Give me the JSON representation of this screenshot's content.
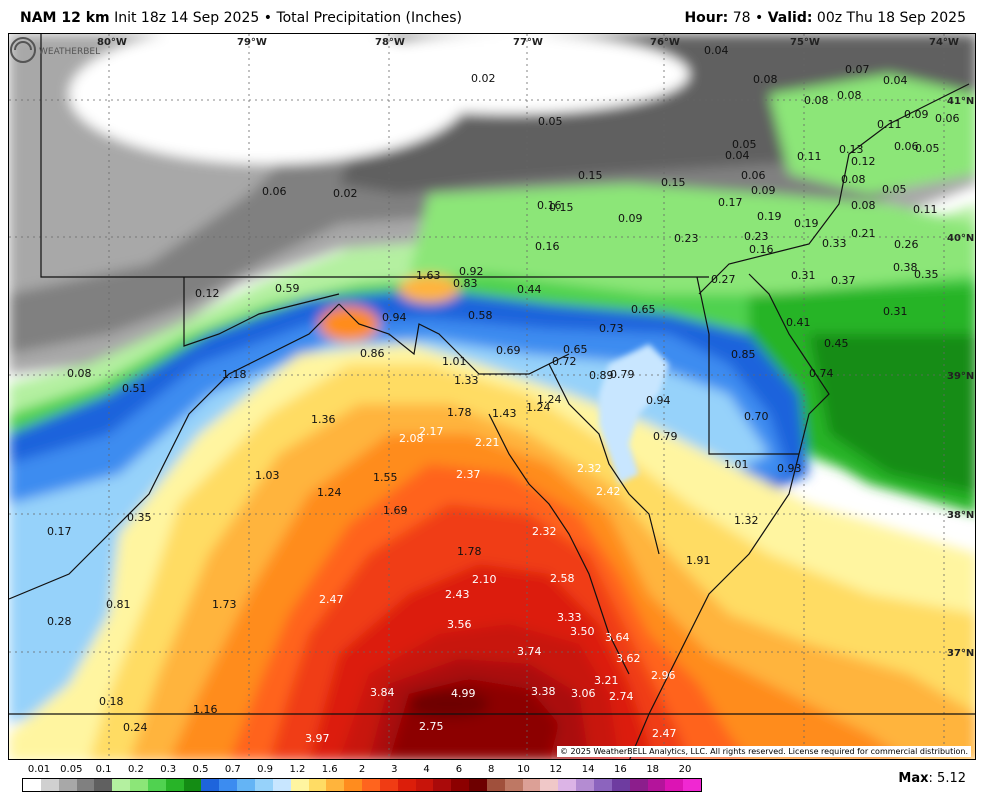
{
  "header": {
    "model": "NAM 12 km",
    "init": "Init 18z 14 Sep 2025",
    "bullet": "•",
    "product": "Total Precipitation (Inches)",
    "hour_label": "Hour:",
    "hour_value": "78",
    "valid_label": "Valid:",
    "valid_value": "00z Thu 18 Sep 2025"
  },
  "map": {
    "longitude_labels": [
      "80°W",
      "79°W",
      "78°W",
      "77°W",
      "76°W",
      "75°W",
      "74°W"
    ],
    "latitude_labels": [
      "41°N",
      "40°N",
      "39°N",
      "38°N",
      "37°N"
    ],
    "precip_values": [
      {
        "t": "0.04",
        "v": 0.04
      },
      {
        "t": "0.02",
        "v": 0.02
      },
      {
        "t": "0.08",
        "v": 0.08
      },
      {
        "t": "0.07",
        "v": 0.07
      },
      {
        "t": "0.04",
        "v": 0.04
      },
      {
        "t": "0.08",
        "v": 0.08
      },
      {
        "t": "0.08",
        "v": 0.08
      },
      {
        "t": "0.09",
        "v": 0.09
      },
      {
        "t": "0.06",
        "v": 0.06
      },
      {
        "t": "0.11",
        "v": 0.11
      },
      {
        "t": "0.05",
        "v": 0.05
      },
      {
        "t": "0.05",
        "v": 0.05
      },
      {
        "t": "0.13",
        "v": 0.13
      },
      {
        "t": "0.06",
        "v": 0.06
      },
      {
        "t": "0.05",
        "v": 0.05
      },
      {
        "t": "0.04",
        "v": 0.04
      },
      {
        "t": "0.11",
        "v": 0.11
      },
      {
        "t": "0.12",
        "v": 0.12
      },
      {
        "t": "0.06",
        "v": 0.06
      },
      {
        "t": "0.08",
        "v": 0.08
      },
      {
        "t": "0.06",
        "v": 0.06
      },
      {
        "t": "0.02",
        "v": 0.02
      },
      {
        "t": "0.15",
        "v": 0.15
      },
      {
        "t": "0.15",
        "v": 0.15
      },
      {
        "t": "0.09",
        "v": 0.09
      },
      {
        "t": "0.05",
        "v": 0.05
      },
      {
        "t": "0.16",
        "v": 0.16
      },
      {
        "t": "0.15",
        "v": 0.15
      },
      {
        "t": "0.17",
        "v": 0.17
      },
      {
        "t": "0.08",
        "v": 0.08
      },
      {
        "t": "0.11",
        "v": 0.11
      },
      {
        "t": "0.09",
        "v": 0.09
      },
      {
        "t": "0.19",
        "v": 0.19
      },
      {
        "t": "0.19",
        "v": 0.19
      },
      {
        "t": "0.21",
        "v": 0.21
      },
      {
        "t": "0.16",
        "v": 0.16
      },
      {
        "t": "0.23",
        "v": 0.23
      },
      {
        "t": "0.23",
        "v": 0.23
      },
      {
        "t": "0.16",
        "v": 0.16
      },
      {
        "t": "0.33",
        "v": 0.33
      },
      {
        "t": "0.26",
        "v": 0.26
      },
      {
        "t": "1.63",
        "v": 1.63
      },
      {
        "t": "0.92",
        "v": 0.92
      },
      {
        "t": "0.38",
        "v": 0.38
      },
      {
        "t": "0.12",
        "v": 0.12
      },
      {
        "t": "0.59",
        "v": 0.59
      },
      {
        "t": "0.83",
        "v": 0.83
      },
      {
        "t": "0.44",
        "v": 0.44
      },
      {
        "t": "0.27",
        "v": 0.27
      },
      {
        "t": "0.31",
        "v": 0.31
      },
      {
        "t": "0.37",
        "v": 0.37
      },
      {
        "t": "0.35",
        "v": 0.35
      },
      {
        "t": "0.94",
        "v": 0.94
      },
      {
        "t": "0.58",
        "v": 0.58
      },
      {
        "t": "0.65",
        "v": 0.65
      },
      {
        "t": "0.31",
        "v": 0.31
      },
      {
        "t": "0.73",
        "v": 0.73
      },
      {
        "t": "0.41",
        "v": 0.41
      },
      {
        "t": "0.86",
        "v": 0.86
      },
      {
        "t": "0.69",
        "v": 0.69
      },
      {
        "t": "0.65",
        "v": 0.65
      },
      {
        "t": "0.85",
        "v": 0.85
      },
      {
        "t": "0.45",
        "v": 0.45
      },
      {
        "t": "1.01",
        "v": 1.01
      },
      {
        "t": "0.72",
        "v": 0.72
      },
      {
        "t": "0.08",
        "v": 0.08
      },
      {
        "t": "1.18",
        "v": 1.18
      },
      {
        "t": "1.33",
        "v": 1.33
      },
      {
        "t": "0.89",
        "v": 0.89
      },
      {
        "t": "0.79",
        "v": 0.79
      },
      {
        "t": "0.74",
        "v": 0.74
      },
      {
        "t": "0.51",
        "v": 0.51
      },
      {
        "t": "1.24",
        "v": 1.24
      },
      {
        "t": "0.94",
        "v": 0.94
      },
      {
        "t": "1.78",
        "v": 1.78
      },
      {
        "t": "1.43",
        "v": 1.43
      },
      {
        "t": "1.24",
        "v": 1.24
      },
      {
        "t": "0.70",
        "v": 0.7
      },
      {
        "t": "1.36",
        "v": 1.36
      },
      {
        "t": "0.79",
        "v": 0.79
      },
      {
        "t": "2.17",
        "v": 2.17
      },
      {
        "t": "2.08",
        "v": 2.08
      },
      {
        "t": "2.21",
        "v": 2.21
      },
      {
        "t": "1.01",
        "v": 1.01
      },
      {
        "t": "2.32",
        "v": 2.32
      },
      {
        "t": "0.93",
        "v": 0.93
      },
      {
        "t": "1.03",
        "v": 1.03
      },
      {
        "t": "1.55",
        "v": 1.55
      },
      {
        "t": "2.37",
        "v": 2.37
      },
      {
        "t": "2.42",
        "v": 2.42
      },
      {
        "t": "1.24",
        "v": 1.24
      },
      {
        "t": "1.69",
        "v": 1.69
      },
      {
        "t": "1.32",
        "v": 1.32
      },
      {
        "t": "0.35",
        "v": 0.35
      },
      {
        "t": "0.17",
        "v": 0.17
      },
      {
        "t": "2.32",
        "v": 2.32
      },
      {
        "t": "1.78",
        "v": 1.78
      },
      {
        "t": "1.91",
        "v": 1.91
      },
      {
        "t": "2.10",
        "v": 2.1
      },
      {
        "t": "2.58",
        "v": 2.58
      },
      {
        "t": "0.81",
        "v": 0.81
      },
      {
        "t": "1.73",
        "v": 1.73
      },
      {
        "t": "2.47",
        "v": 2.47
      },
      {
        "t": "2.43",
        "v": 2.43
      },
      {
        "t": "0.28",
        "v": 0.28
      },
      {
        "t": "3.33",
        "v": 3.33
      },
      {
        "t": "3.56",
        "v": 3.56
      },
      {
        "t": "3.50",
        "v": 3.5
      },
      {
        "t": "3.64",
        "v": 3.64
      },
      {
        "t": "3.74",
        "v": 3.74
      },
      {
        "t": "3.62",
        "v": 3.62
      },
      {
        "t": "2.96",
        "v": 2.96
      },
      {
        "t": "3.21",
        "v": 3.21
      },
      {
        "t": "3.84",
        "v": 3.84
      },
      {
        "t": "4.99",
        "v": 4.99
      },
      {
        "t": "3.38",
        "v": 3.38
      },
      {
        "t": "3.06",
        "v": 3.06
      },
      {
        "t": "2.74",
        "v": 2.74
      },
      {
        "t": "0.18",
        "v": 0.18
      },
      {
        "t": "1.16",
        "v": 1.16
      },
      {
        "t": "0.24",
        "v": 0.24
      },
      {
        "t": "2.75",
        "v": 2.75
      },
      {
        "t": "2.47",
        "v": 2.47
      },
      {
        "t": "3.97",
        "v": 3.97
      }
    ],
    "copyright": "© 2025 WeatherBELL Analytics, LLC. All rights reserved. License required for commercial distribution.",
    "logo_text": "WEATHERBELL"
  },
  "legend": {
    "ticks": [
      "0.01",
      "0.05",
      "0.1",
      "0.2",
      "0.3",
      "0.5",
      "0.7",
      "0.9",
      "1.2",
      "1.6",
      "2",
      "3",
      "4",
      "6",
      "8",
      "10",
      "12",
      "14",
      "16",
      "18",
      "20"
    ],
    "colors": [
      "#ffffff",
      "#d0d0d0",
      "#a8a8a8",
      "#808080",
      "#606060",
      "#b4f0a0",
      "#8ce678",
      "#50d250",
      "#28b428",
      "#148c14",
      "#1e64dc",
      "#3c8cf0",
      "#64b4f5",
      "#96d2fa",
      "#c8e6ff",
      "#fff5a0",
      "#ffdc64",
      "#ffb43c",
      "#ff8c1e",
      "#ff641e",
      "#f03c14",
      "#dc1e0a",
      "#c8140a",
      "#aa0a0a",
      "#8c0000",
      "#6e0000",
      "#a0503c",
      "#be7864",
      "#dca096",
      "#f0c8c8",
      "#dcb4e6",
      "#b48cd2",
      "#8c64be",
      "#6e3ca0",
      "#8c1e8c",
      "#b4149b",
      "#dc14b4",
      "#f028d2"
    ],
    "max_label": "Max",
    "max_value": "5.12"
  }
}
